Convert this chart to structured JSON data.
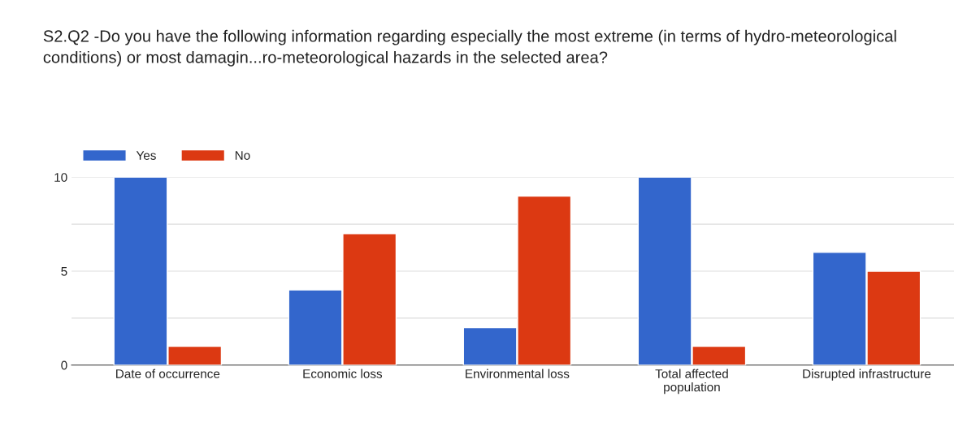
{
  "chart_data": {
    "type": "bar",
    "title": "S2.Q2 -Do you have the following information regarding especially the most extreme (in terms of hydro-meteorological conditions) or most damagin...ro-meteorological hazards in the selected area?",
    "categories": [
      "Date of occurrence",
      "Economic loss",
      "Environmental loss",
      "Total affected\npopulation",
      "Disrupted infrastructure"
    ],
    "series": [
      {
        "name": "Yes",
        "color": "#3366cc",
        "values": [
          10,
          4,
          2,
          10,
          6
        ]
      },
      {
        "name": "No",
        "color": "#dc3912",
        "values": [
          1,
          7,
          9,
          1,
          5
        ]
      }
    ],
    "ylim": [
      0,
      10
    ],
    "yticks": [
      0,
      {
        "value": 2.5,
        "label": null
      },
      5,
      {
        "value": 7.5,
        "label": null
      },
      10
    ],
    "grid": "y",
    "legend": "top left"
  }
}
